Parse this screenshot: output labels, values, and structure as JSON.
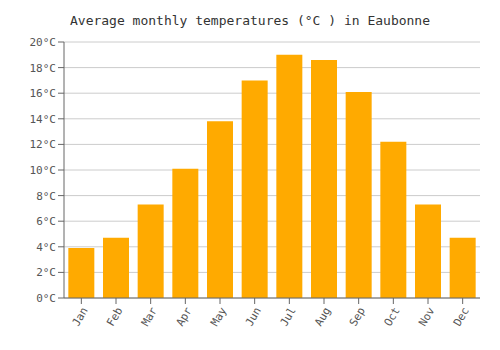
{
  "chart_data": {
    "type": "bar",
    "title": "Average monthly temperatures (°C ) in Eaubonne",
    "categories": [
      "Jan",
      "Feb",
      "Mar",
      "Apr",
      "May",
      "Jun",
      "Jul",
      "Aug",
      "Sep",
      "Oct",
      "Nov",
      "Dec"
    ],
    "values": [
      3.9,
      4.7,
      7.3,
      10.1,
      13.8,
      17.0,
      19.0,
      18.6,
      16.1,
      12.2,
      7.3,
      4.7
    ],
    "color": "#FFAA00",
    "ylim": [
      0,
      20
    ],
    "yticks": [
      {
        "value": 0,
        "label": "0°C"
      },
      {
        "value": 2,
        "label": "2°C"
      },
      {
        "value": 4,
        "label": "4°C"
      },
      {
        "value": 6,
        "label": "6°C"
      },
      {
        "value": 8,
        "label": "8°C"
      },
      {
        "value": 10,
        "label": "10°C"
      },
      {
        "value": 12,
        "label": "12°C"
      },
      {
        "value": 14,
        "label": "14°C"
      },
      {
        "value": 16,
        "label": "16°C"
      },
      {
        "value": 18,
        "label": "18°C"
      },
      {
        "value": 20,
        "label": "20°C"
      }
    ],
    "grid": true
  }
}
